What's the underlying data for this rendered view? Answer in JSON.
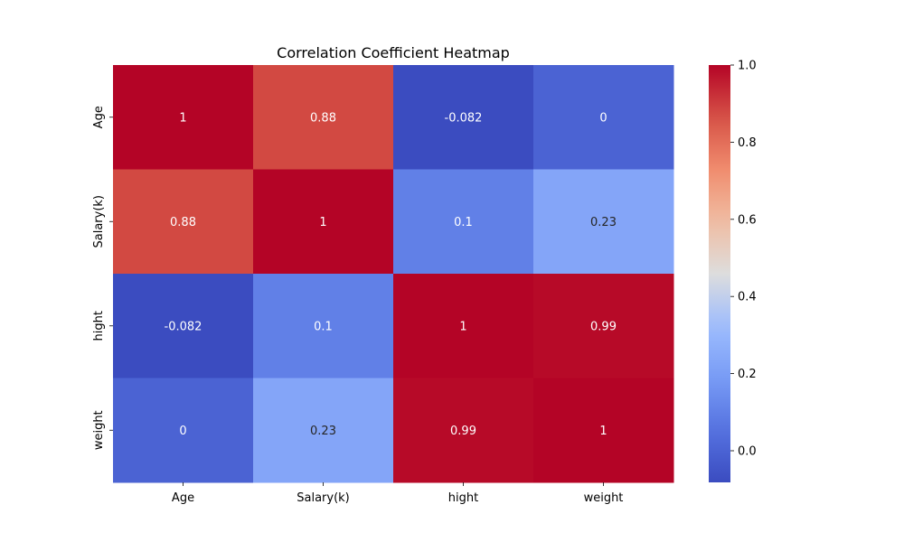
{
  "chart_data": {
    "type": "heatmap",
    "title": "Correlation Coefficient Heatmap",
    "x_categories": [
      "Age",
      "Salary(k)",
      "hight",
      "weight"
    ],
    "y_categories": [
      "Age",
      "Salary(k)",
      "hight",
      "weight"
    ],
    "values": [
      [
        1,
        0.88,
        -0.082,
        0
      ],
      [
        0.88,
        1,
        0.1,
        0.23
      ],
      [
        -0.082,
        0.1,
        1,
        0.99
      ],
      [
        0,
        0.23,
        0.99,
        1
      ]
    ],
    "cell_labels": [
      [
        "1",
        "0.88",
        "-0.082",
        "0"
      ],
      [
        "0.88",
        "1",
        "0.1",
        "0.23"
      ],
      [
        "-0.082",
        "0.1",
        "1",
        "0.99"
      ],
      [
        "0",
        "0.23",
        "0.99",
        "1"
      ]
    ],
    "colormap": "coolwarm",
    "colorbar": {
      "range": [
        -0.082,
        1.0
      ],
      "ticks": [
        0.0,
        0.2,
        0.4,
        0.6,
        0.8,
        1.0
      ],
      "tick_labels": [
        "0.0",
        "0.2",
        "0.4",
        "0.6",
        "0.8",
        "1.0"
      ]
    },
    "annotation_colors": {
      "light_text": "#ffffff",
      "dark_text": "#262626"
    }
  }
}
